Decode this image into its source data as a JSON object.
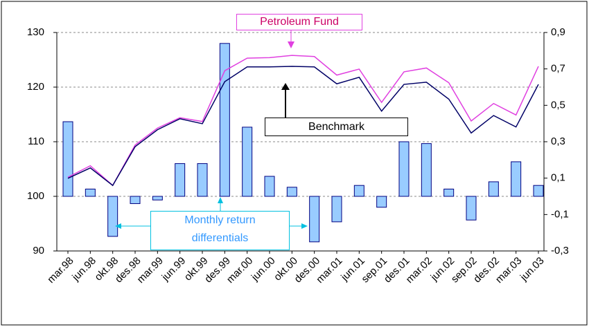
{
  "chart_data": {
    "type": "combo",
    "categories": [
      "mar.98",
      "jun.98",
      "okt.98",
      "des.98",
      "mar.99",
      "jun.99",
      "okt.99",
      "des.99",
      "mar.00",
      "jun.00",
      "okt.00",
      "des.00",
      "mar.01",
      "jun.01",
      "sep.01",
      "des.01",
      "mar.02",
      "jun.02",
      "sep.02",
      "des.02",
      "mar.03",
      "jun.03"
    ],
    "series": [
      {
        "name": "Monthly return differentials",
        "type": "bar",
        "axis": "y2",
        "color": "#99ccff",
        "values": [
          0.41,
          0.04,
          -0.22,
          -0.04,
          -0.02,
          0.18,
          0.18,
          0.84,
          0.38,
          0.11,
          0.05,
          -0.25,
          -0.14,
          0.06,
          -0.06,
          0.3,
          0.29,
          0.04,
          -0.13,
          0.08,
          0.19,
          0.06
        ]
      },
      {
        "name": "Petroleum Fund",
        "type": "line",
        "color": "#e040e0",
        "values": [
          103.5,
          105.6,
          102.0,
          109.4,
          112.5,
          114.4,
          113.7,
          123.0,
          125.3,
          125.4,
          125.8,
          125.6,
          122.2,
          123.3,
          117.2,
          122.8,
          123.5,
          120.8,
          113.8,
          117.0,
          114.9,
          123.8
        ]
      },
      {
        "name": "Benchmark",
        "type": "line",
        "color": "#000066",
        "values": [
          103.3,
          105.2,
          102.0,
          109.1,
          112.2,
          114.2,
          113.3,
          121.0,
          123.7,
          123.7,
          123.8,
          123.7,
          120.6,
          121.8,
          115.6,
          120.5,
          120.9,
          117.8,
          111.6,
          114.8,
          112.7,
          120.5
        ]
      }
    ],
    "ylim": [
      90,
      130
    ],
    "yticks": [
      90,
      100,
      110,
      120,
      130
    ],
    "y2lim": [
      -0.3,
      0.9
    ],
    "y2ticks": [
      {
        "value": -0.3,
        "label": "-0,3"
      },
      {
        "value": -0.1,
        "label": "-0,1"
      },
      {
        "value": 0.1,
        "label": "0,1"
      },
      {
        "value": 0.3,
        "label": "0,3"
      },
      {
        "value": 0.5,
        "label": "0,5"
      },
      {
        "value": 0.7,
        "label": "0,7"
      },
      {
        "value": 0.9,
        "label": "0,9"
      }
    ],
    "grid": true
  }
}
